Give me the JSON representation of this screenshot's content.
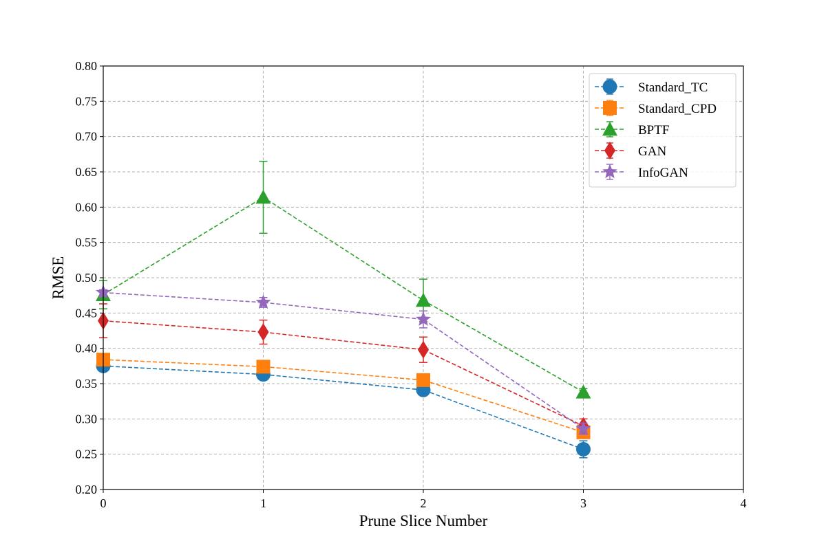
{
  "chart_data": {
    "type": "line",
    "title": "",
    "xlabel": "Prune Slice Number",
    "ylabel": "RMSE",
    "xlim": [
      0,
      4
    ],
    "ylim": [
      0.2,
      0.8
    ],
    "xticks": [
      "0",
      "1",
      "2",
      "3",
      "4"
    ],
    "yticks": [
      "0.20",
      "0.25",
      "0.30",
      "0.35",
      "0.40",
      "0.45",
      "0.50",
      "0.55",
      "0.60",
      "0.65",
      "0.70",
      "0.75",
      "0.80"
    ],
    "grid": true,
    "legend_position": "top-right",
    "x": [
      0,
      1,
      2,
      3
    ],
    "series": [
      {
        "name": "Standard_TC",
        "color": "#1f77b4",
        "marker": "circle",
        "linestyle": "dashed",
        "values": [
          0.375,
          0.363,
          0.341,
          0.257
        ],
        "errors": [
          0.004,
          0.005,
          0.008,
          0.012
        ]
      },
      {
        "name": "Standard_CPD",
        "color": "#ff7f0e",
        "marker": "square",
        "linestyle": "dashed",
        "values": [
          0.384,
          0.374,
          0.355,
          0.281
        ],
        "errors": [
          0.003,
          0.004,
          0.005,
          0.006
        ]
      },
      {
        "name": "BPTF",
        "color": "#2ca02c",
        "marker": "triangle",
        "linestyle": "dashed",
        "values": [
          0.476,
          0.614,
          0.468,
          0.338
        ],
        "errors": [
          0.02,
          0.051,
          0.03,
          0.005
        ]
      },
      {
        "name": "GAN",
        "color": "#d62728",
        "marker": "diamond",
        "linestyle": "dashed",
        "values": [
          0.439,
          0.423,
          0.398,
          0.29
        ],
        "errors": [
          0.024,
          0.017,
          0.018,
          0.01
        ]
      },
      {
        "name": "InfoGAN",
        "color": "#9467bd",
        "marker": "star",
        "linestyle": "dashed",
        "values": [
          0.479,
          0.465,
          0.441,
          0.286
        ],
        "errors": [
          0.004,
          0.007,
          0.012,
          0.008
        ]
      }
    ]
  }
}
